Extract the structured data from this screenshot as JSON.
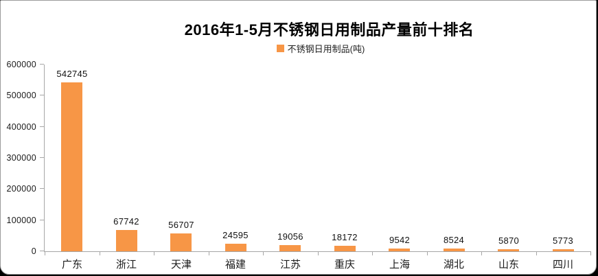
{
  "title": "2016年1-5月不锈钢日用制品产量前十排名",
  "legend": {
    "label": "不锈钢日用制品(吨)",
    "marker": "orange-square"
  },
  "colors": {
    "bar": "#F79646",
    "axis": "#a6a6a6",
    "title_text": "#000000",
    "label_text": "#1a1a1a",
    "background": "#ffffff"
  },
  "chart_data": {
    "type": "bar",
    "title": "2016年1-5月不锈钢日用制品产量前十排名",
    "series_name": "不锈钢日用制品(吨)",
    "categories": [
      "广东",
      "浙江",
      "天津",
      "福建",
      "江苏",
      "重庆",
      "上海",
      "湖北",
      "山东",
      "四川"
    ],
    "values": [
      542745,
      67742,
      56707,
      24595,
      19056,
      18172,
      9542,
      8524,
      5870,
      5773
    ],
    "xlabel": "",
    "ylabel": "",
    "ylim": [
      0,
      600000
    ],
    "ytick_step": 100000,
    "yticks": [
      0,
      100000,
      200000,
      300000,
      400000,
      500000,
      600000
    ],
    "grid": false,
    "data_labels": true,
    "legend_position": "top"
  }
}
